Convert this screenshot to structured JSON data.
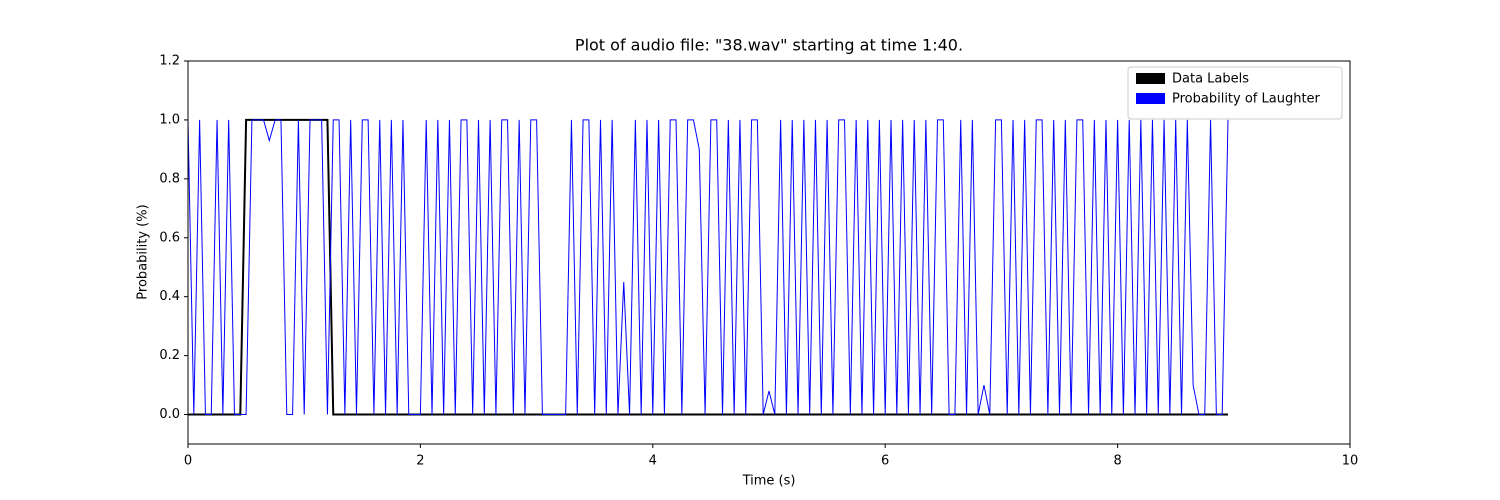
{
  "chart_data": {
    "type": "line",
    "title": "Plot of audio file: \"38.wav\" starting at time 1:40.",
    "xlabel": "Time (s)",
    "ylabel": "Probability (%)",
    "xlim": [
      0,
      10
    ],
    "ylim": [
      -0.1,
      1.2
    ],
    "xticks": [
      0,
      2,
      4,
      6,
      8,
      10
    ],
    "yticks": [
      {
        "value": 0,
        "label": "0.0"
      },
      {
        "value": 0.2,
        "label": "0.2"
      },
      {
        "value": 0.4,
        "label": "0.4"
      },
      {
        "value": 0.6,
        "label": "0.6"
      },
      {
        "value": 0.8,
        "label": "0.8"
      },
      {
        "value": 1,
        "label": "1.0"
      },
      {
        "value": 1.2,
        "label": "1.2"
      }
    ],
    "legend": "upper right",
    "x": [
      0,
      0.05,
      0.1,
      0.15,
      0.2,
      0.25,
      0.3,
      0.35,
      0.4,
      0.45,
      0.5,
      0.55,
      0.6,
      0.65,
      0.7,
      0.75,
      0.8,
      0.85,
      0.9,
      0.95,
      1,
      1.05,
      1.1,
      1.15,
      1.2,
      1.25,
      1.3,
      1.35,
      1.4,
      1.45,
      1.5,
      1.55,
      1.6,
      1.65,
      1.7,
      1.75,
      1.8,
      1.85,
      1.9,
      1.95,
      2,
      2.05,
      2.1,
      2.15,
      2.2,
      2.25,
      2.3,
      2.35,
      2.4,
      2.45,
      2.5,
      2.55,
      2.6,
      2.65,
      2.7,
      2.75,
      2.8,
      2.85,
      2.9,
      2.95,
      3,
      3.05,
      3.1,
      3.15,
      3.2,
      3.25,
      3.3,
      3.35,
      3.4,
      3.45,
      3.5,
      3.55,
      3.6,
      3.65,
      3.7,
      3.75,
      3.8,
      3.85,
      3.9,
      3.95,
      4,
      4.05,
      4.1,
      4.15,
      4.2,
      4.25,
      4.3,
      4.35,
      4.4,
      4.45,
      4.5,
      4.55,
      4.6,
      4.65,
      4.7,
      4.75,
      4.8,
      4.85,
      4.9,
      4.95,
      5,
      5.05,
      5.1,
      5.15,
      5.2,
      5.25,
      5.3,
      5.35,
      5.4,
      5.45,
      5.5,
      5.55,
      5.6,
      5.65,
      5.7,
      5.75,
      5.8,
      5.85,
      5.9,
      5.95,
      6,
      6.05,
      6.1,
      6.15,
      6.2,
      6.25,
      6.3,
      6.35,
      6.4,
      6.45,
      6.5,
      6.55,
      6.6,
      6.65,
      6.7,
      6.75,
      6.8,
      6.85,
      6.9,
      6.95,
      7,
      7.05,
      7.1,
      7.15,
      7.2,
      7.25,
      7.3,
      7.35,
      7.4,
      7.45,
      7.5,
      7.55,
      7.6,
      7.65,
      7.7,
      7.75,
      7.8,
      7.85,
      7.9,
      7.95,
      8,
      8.05,
      8.1,
      8.15,
      8.2,
      8.25,
      8.3,
      8.35,
      8.4,
      8.45,
      8.5,
      8.55,
      8.6,
      8.65,
      8.7,
      8.75,
      8.8,
      8.85,
      8.9,
      8.95
    ],
    "series": [
      {
        "name": "Data Labels",
        "color": "#000000",
        "width": 2,
        "values": [
          0,
          0,
          0,
          0,
          0,
          0,
          0,
          0,
          0,
          0,
          1,
          1,
          1,
          1,
          1,
          1,
          1,
          1,
          1,
          1,
          1,
          1,
          1,
          1,
          1,
          0,
          0,
          0,
          0,
          0,
          0,
          0,
          0,
          0,
          0,
          0,
          0,
          0,
          0,
          0,
          0,
          0,
          0,
          0,
          0,
          0,
          0,
          0,
          0,
          0,
          0,
          0,
          0,
          0,
          0,
          0,
          0,
          0,
          0,
          0,
          0,
          0,
          0,
          0,
          0,
          0,
          0,
          0,
          0,
          0,
          0,
          0,
          0,
          0,
          0,
          0,
          0,
          0,
          0,
          0,
          0,
          0,
          0,
          0,
          0,
          0,
          0,
          0,
          0,
          0,
          0,
          0,
          0,
          0,
          0,
          0,
          0,
          0,
          0,
          0,
          0,
          0,
          0,
          0,
          0,
          0,
          0,
          0,
          0,
          0,
          0,
          0,
          0,
          0,
          0,
          0,
          0,
          0,
          0,
          0,
          0,
          0,
          0,
          0,
          0,
          0,
          0,
          0,
          0,
          0,
          0,
          0,
          0,
          0,
          0,
          0,
          0,
          0,
          0,
          0,
          0,
          0,
          0,
          0,
          0,
          0,
          0,
          0,
          0,
          0,
          0,
          0,
          0,
          0,
          0,
          0,
          0,
          0,
          0,
          0,
          0,
          0,
          0,
          0,
          0,
          0,
          0,
          0,
          0,
          0,
          0,
          0,
          0,
          0,
          0,
          0,
          0,
          0,
          0,
          0
        ]
      },
      {
        "name": "Probability of Laughter",
        "color": "#0000ff",
        "width": 1,
        "values": [
          1,
          0,
          1,
          0,
          0,
          1,
          0,
          1,
          0,
          0,
          0,
          1,
          1,
          1,
          0.93,
          1,
          1,
          0,
          0,
          1,
          0,
          1,
          1,
          1,
          0,
          1,
          1,
          0,
          1,
          0,
          1,
          1,
          0,
          1,
          0,
          1,
          0,
          1,
          0,
          0,
          0,
          1,
          0,
          1,
          0,
          1,
          0,
          1,
          1,
          0,
          1,
          0,
          1,
          0,
          1,
          1,
          0,
          1,
          0,
          1,
          1,
          0,
          0,
          0,
          0,
          0,
          1,
          0,
          1,
          1,
          0,
          1,
          0,
          1,
          0,
          0.45,
          0,
          1,
          0,
          1,
          0,
          1,
          0,
          1,
          1,
          0,
          1,
          1,
          0.9,
          0,
          1,
          1,
          0,
          1,
          0,
          1,
          0,
          1,
          1,
          0,
          0.08,
          0,
          1,
          0,
          1,
          0,
          1,
          0,
          1,
          0,
          1,
          0,
          1,
          1,
          0,
          1,
          0,
          1,
          0,
          1,
          0,
          1,
          0,
          1,
          0,
          1,
          0,
          1,
          0,
          1,
          1,
          0,
          0,
          1,
          0,
          1,
          0,
          0.1,
          0,
          1,
          1,
          0,
          1,
          0,
          1,
          0,
          1,
          1,
          0,
          1,
          0,
          1,
          0,
          1,
          1,
          0,
          1,
          0,
          1,
          0,
          1,
          0,
          1,
          0,
          1,
          0,
          1,
          0,
          1,
          0,
          1,
          0,
          1,
          0.1,
          0,
          0,
          1,
          0,
          0,
          1
        ]
      }
    ]
  }
}
